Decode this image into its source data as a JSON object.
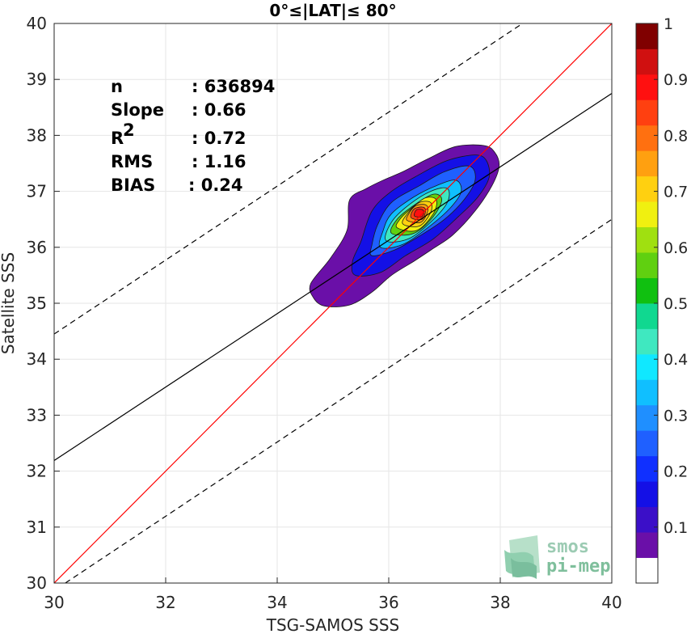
{
  "chart_data": {
    "type": "contour",
    "title": "0°≤|LAT|≤ 80°",
    "xlabel": "TSG-SAMOS SSS",
    "ylabel": "Satellite SSS",
    "xlim": [
      30,
      40
    ],
    "ylim": [
      30,
      40
    ],
    "xticks": [
      "30",
      "32",
      "34",
      "36",
      "38",
      "40"
    ],
    "yticks": [
      "30",
      "31",
      "32",
      "33",
      "34",
      "35",
      "36",
      "37",
      "38",
      "39",
      "40"
    ],
    "stats": [
      {
        "label": "n",
        "value": ": 636894"
      },
      {
        "label": "Slope",
        "value": ": 0.66"
      },
      {
        "label": "R",
        "sup": "2",
        "value": ": 0.72"
      },
      {
        "label": "RMS",
        "value": ": 1.16"
      },
      {
        "label": "BIAS",
        "value": ": 0.24"
      }
    ],
    "lines": [
      {
        "kind": "one-to-one",
        "color": "#ff0000",
        "from": [
          30,
          30
        ],
        "to": [
          40,
          40
        ]
      },
      {
        "kind": "regression",
        "color": "#000000",
        "from": [
          30,
          32.19
        ],
        "to": [
          40,
          38.75
        ]
      },
      {
        "kind": "upper-bound",
        "color": "#000000",
        "dashed": true,
        "from": [
          30,
          34.45
        ],
        "to": [
          38.4,
          40
        ]
      },
      {
        "kind": "lower-bound",
        "color": "#000000",
        "dashed": true,
        "from": [
          30.2,
          30
        ],
        "to": [
          40,
          36.5
        ]
      }
    ],
    "density_center": [
      36.57,
      36.6
    ],
    "contours": [
      {
        "level": 0.05,
        "polygon": [
          [
            34.65,
            35.1
          ],
          [
            34.85,
            34.95
          ],
          [
            35.3,
            34.97
          ],
          [
            35.7,
            35.2
          ],
          [
            36.05,
            35.5
          ],
          [
            36.45,
            35.75
          ],
          [
            36.8,
            35.98
          ],
          [
            37.15,
            36.22
          ],
          [
            37.55,
            36.65
          ],
          [
            37.85,
            37.1
          ],
          [
            37.98,
            37.45
          ],
          [
            37.9,
            37.7
          ],
          [
            37.7,
            37.82
          ],
          [
            37.2,
            37.8
          ],
          [
            36.7,
            37.58
          ],
          [
            36.25,
            37.35
          ],
          [
            35.9,
            37.2
          ],
          [
            35.6,
            37.05
          ],
          [
            35.3,
            36.85
          ],
          [
            35.25,
            36.3
          ],
          [
            34.95,
            35.8
          ],
          [
            34.6,
            35.35
          ]
        ]
      },
      {
        "level": 0.15,
        "polygon": [
          [
            35.4,
            35.5
          ],
          [
            35.85,
            35.55
          ],
          [
            36.3,
            35.85
          ],
          [
            36.8,
            36.15
          ],
          [
            37.25,
            36.55
          ],
          [
            37.6,
            36.9
          ],
          [
            37.8,
            37.25
          ],
          [
            37.75,
            37.55
          ],
          [
            37.55,
            37.65
          ],
          [
            37.05,
            37.55
          ],
          [
            36.55,
            37.3
          ],
          [
            36.05,
            37.0
          ],
          [
            35.7,
            36.65
          ],
          [
            35.5,
            36.1
          ],
          [
            35.35,
            35.75
          ]
        ]
      },
      {
        "level": 0.25,
        "polygon": [
          [
            35.7,
            35.85
          ],
          [
            36.1,
            35.95
          ],
          [
            36.55,
            36.2
          ],
          [
            37.0,
            36.5
          ],
          [
            37.35,
            36.85
          ],
          [
            37.55,
            37.2
          ],
          [
            37.45,
            37.45
          ],
          [
            37.0,
            37.35
          ],
          [
            36.55,
            37.1
          ],
          [
            36.05,
            36.8
          ],
          [
            35.8,
            36.4
          ],
          [
            35.7,
            36.05
          ]
        ]
      },
      {
        "level": 0.35,
        "polygon": [
          [
            35.85,
            36.0
          ],
          [
            36.25,
            36.05
          ],
          [
            36.7,
            36.35
          ],
          [
            37.1,
            36.7
          ],
          [
            37.3,
            37.0
          ],
          [
            37.2,
            37.2
          ],
          [
            36.85,
            37.1
          ],
          [
            36.45,
            36.9
          ],
          [
            36.05,
            36.6
          ],
          [
            35.9,
            36.3
          ]
        ]
      },
      {
        "level": 0.45,
        "polygon": [
          [
            35.95,
            36.12
          ],
          [
            36.35,
            36.15
          ],
          [
            36.75,
            36.45
          ],
          [
            37.05,
            36.8
          ],
          [
            37.05,
            37.05
          ],
          [
            36.75,
            37.0
          ],
          [
            36.35,
            36.75
          ],
          [
            36.05,
            36.45
          ]
        ]
      },
      {
        "level": 0.55,
        "polygon": [
          [
            36.05,
            36.25
          ],
          [
            36.45,
            36.25
          ],
          [
            36.8,
            36.55
          ],
          [
            36.95,
            36.85
          ],
          [
            36.8,
            36.95
          ],
          [
            36.45,
            36.75
          ],
          [
            36.15,
            36.5
          ]
        ]
      },
      {
        "level": 0.65,
        "polygon": [
          [
            36.15,
            36.35
          ],
          [
            36.5,
            36.3
          ],
          [
            36.8,
            36.6
          ],
          [
            36.85,
            36.85
          ],
          [
            36.65,
            36.88
          ],
          [
            36.35,
            36.65
          ],
          [
            36.2,
            36.5
          ]
        ]
      },
      {
        "level": 0.72,
        "polygon": [
          [
            36.25,
            36.42
          ],
          [
            36.55,
            36.38
          ],
          [
            36.75,
            36.62
          ],
          [
            36.75,
            36.8
          ],
          [
            36.55,
            36.8
          ],
          [
            36.35,
            36.62
          ]
        ]
      },
      {
        "level": 0.78,
        "polygon": [
          [
            36.33,
            36.48
          ],
          [
            36.58,
            36.45
          ],
          [
            36.7,
            36.65
          ],
          [
            36.66,
            36.76
          ],
          [
            36.48,
            36.74
          ],
          [
            36.36,
            36.6
          ]
        ]
      },
      {
        "level": 0.85,
        "polygon": [
          [
            36.4,
            36.53
          ],
          [
            36.6,
            36.5
          ],
          [
            36.66,
            36.66
          ],
          [
            36.6,
            36.72
          ],
          [
            36.45,
            36.68
          ]
        ]
      },
      {
        "level": 0.92,
        "polygon": [
          [
            36.46,
            36.56
          ],
          [
            36.6,
            36.55
          ],
          [
            36.62,
            36.66
          ],
          [
            36.5,
            36.67
          ]
        ]
      }
    ],
    "colorbar": {
      "range": [
        0,
        1
      ],
      "ticks": [
        "0.1",
        "0.2",
        "0.3",
        "0.4",
        "0.5",
        "0.6",
        "0.7",
        "0.8",
        "0.9",
        "1"
      ],
      "colors": [
        "#ffffff",
        "#6a0fa8",
        "#3b0fc8",
        "#1410e6",
        "#1030ff",
        "#1f60ff",
        "#1f8fff",
        "#10bfff",
        "#10e8ff",
        "#3fe8c0",
        "#10d890",
        "#10c010",
        "#60d010",
        "#a0e010",
        "#f0f010",
        "#ffd010",
        "#ffa010",
        "#ff7010",
        "#ff4010",
        "#ff1010",
        "#d01010",
        "#800000"
      ]
    },
    "grid": true
  },
  "logo": {
    "line1": "smos",
    "line2": "pi-mep"
  }
}
